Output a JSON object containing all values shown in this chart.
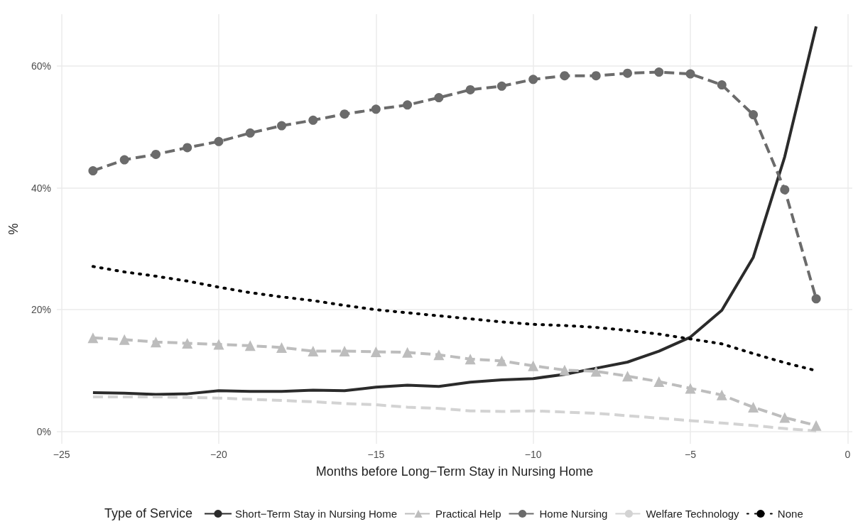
{
  "chart_data": {
    "type": "line",
    "xlabel": "Months before Long−Term Stay in Nursing Home",
    "ylabel": "%",
    "legend_title": "Type of Service",
    "legend": "bottom",
    "grid": true,
    "x": [
      -24,
      -23,
      -22,
      -21,
      -20,
      -19,
      -18,
      -17,
      -16,
      -15,
      -14,
      -13,
      -12,
      -11,
      -10,
      -9,
      -8,
      -7,
      -6,
      -5,
      -4,
      -3,
      -2,
      -1
    ],
    "xlim": [
      -25.15,
      0.15
    ],
    "xticks": [
      {
        "value": -25,
        "label": "−25"
      },
      {
        "value": -20,
        "label": "−20"
      },
      {
        "value": -15,
        "label": "−15"
      },
      {
        "value": -10,
        "label": "−10"
      },
      {
        "value": -5,
        "label": "−5"
      },
      0
    ],
    "ylim": [
      -2,
      68.5
    ],
    "yticks": [
      {
        "value": 0,
        "label": "0%"
      },
      {
        "value": 20,
        "label": "20%"
      },
      {
        "value": 40,
        "label": "40%"
      },
      {
        "value": 60,
        "label": "60%"
      }
    ],
    "series": [
      {
        "name": "Short−Term Stay in Nursing Home",
        "color": "#2b2b2b",
        "marker": "none",
        "line_style": "solid",
        "values": [
          6.4,
          6.3,
          6.1,
          6.2,
          6.7,
          6.6,
          6.6,
          6.8,
          6.7,
          7.3,
          7.6,
          7.4,
          8.1,
          8.5,
          8.7,
          9.4,
          10.4,
          11.4,
          13.2,
          15.5,
          19.9,
          28.6,
          45.1,
          66.5
        ]
      },
      {
        "name": "Practical Help",
        "color": "#bdbdbd",
        "marker": "triangle",
        "line_style": "dashed",
        "values": [
          15.4,
          15.1,
          14.7,
          14.5,
          14.3,
          14.1,
          13.8,
          13.2,
          13.2,
          13.1,
          13.0,
          12.6,
          11.9,
          11.6,
          10.8,
          10.1,
          9.9,
          9.1,
          8.2,
          7.1,
          6.0,
          4.0,
          2.3,
          1.0
        ]
      },
      {
        "name": "Home Nursing",
        "color": "#6b6b6b",
        "marker": "circle",
        "line_style": "dashed",
        "values": [
          42.8,
          44.6,
          45.5,
          46.6,
          47.6,
          49.0,
          50.2,
          51.1,
          52.1,
          52.9,
          53.6,
          54.8,
          56.1,
          56.7,
          57.8,
          58.4,
          58.4,
          58.8,
          59.0,
          58.7,
          56.9,
          52.0,
          39.7,
          21.8
        ]
      },
      {
        "name": "Welfare Technology",
        "color": "#d3d3d3",
        "marker": "none",
        "line_style": "dashed",
        "values": [
          5.7,
          5.7,
          5.7,
          5.6,
          5.5,
          5.3,
          5.1,
          4.9,
          4.6,
          4.4,
          4.0,
          3.8,
          3.4,
          3.3,
          3.4,
          3.2,
          3.0,
          2.6,
          2.2,
          1.8,
          1.4,
          1.0,
          0.5,
          0.1
        ]
      },
      {
        "name": "None",
        "color": "#000000",
        "marker": "none",
        "line_style": "dotted",
        "values": [
          27.1,
          26.2,
          25.5,
          24.7,
          23.7,
          22.8,
          22.1,
          21.5,
          20.7,
          20.0,
          19.5,
          19.0,
          18.5,
          18.0,
          17.6,
          17.4,
          17.1,
          16.6,
          16.0,
          15.2,
          14.4,
          12.8,
          11.3,
          10.0
        ]
      }
    ]
  }
}
